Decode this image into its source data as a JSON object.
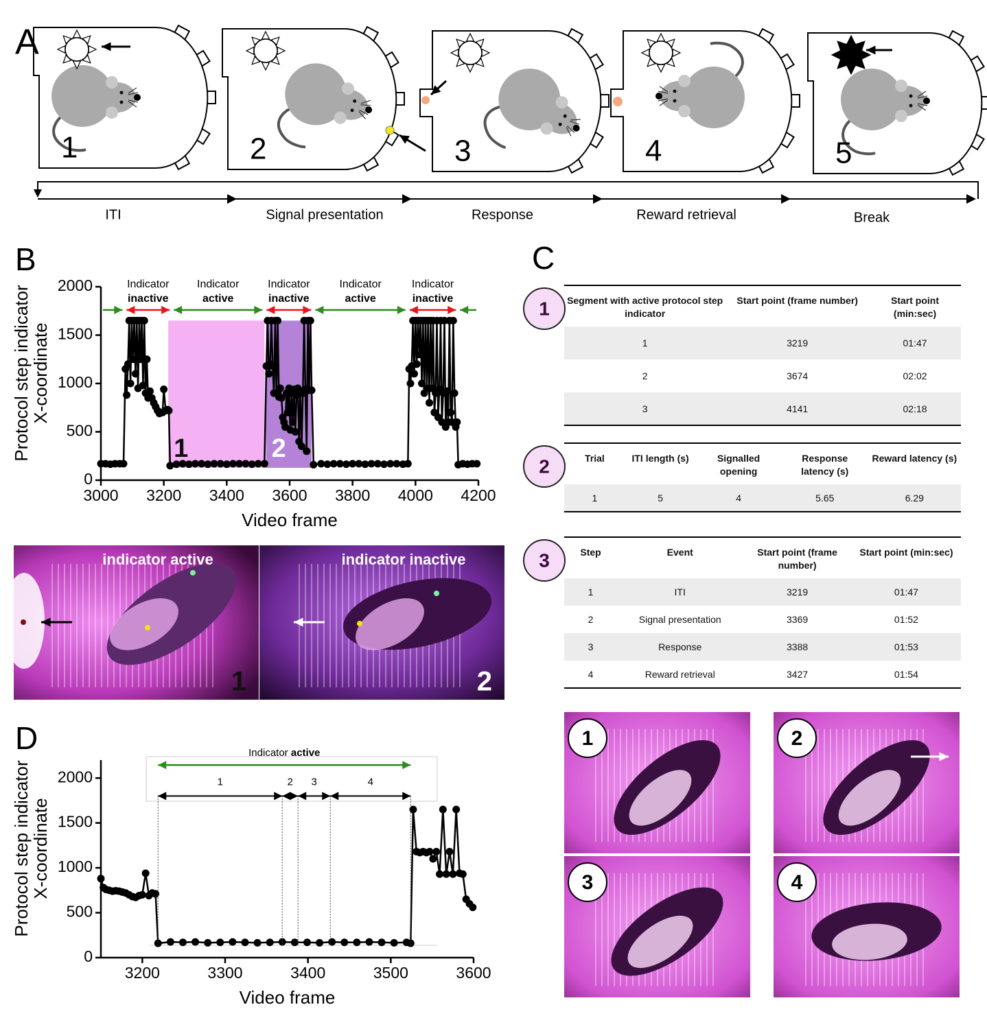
{
  "panel_labels": [
    "A",
    "B",
    "C",
    "D"
  ],
  "panel_a": {
    "steps": [
      "1",
      "2",
      "3",
      "4",
      "5"
    ],
    "phases": [
      "ITI",
      "Signal presentation",
      "Response",
      "Reward retrieval",
      "Break"
    ]
  },
  "chart_data": [
    {
      "type": "line",
      "xlabel": "Video frame",
      "ylabel": [
        "Protocol step indicator",
        "X-coordinate"
      ],
      "xlim": [
        3000,
        4200
      ],
      "xticks": [
        3000,
        3200,
        3400,
        3600,
        3800,
        4000,
        4200
      ],
      "ylim": [
        0,
        2000
      ],
      "yticks": [
        0,
        500,
        1000,
        1500,
        2000
      ],
      "color": "#000000",
      "x": [
        3000,
        3015,
        3030,
        3045,
        3060,
        3072,
        3078,
        3082,
        3086,
        3090,
        3094,
        3098,
        3102,
        3106,
        3110,
        3114,
        3118,
        3122,
        3126,
        3130,
        3134,
        3138,
        3142,
        3146,
        3150,
        3156,
        3162,
        3168,
        3174,
        3180,
        3186,
        3192,
        3196,
        3200,
        3206,
        3212,
        3216,
        3220,
        3240,
        3260,
        3280,
        3300,
        3320,
        3340,
        3360,
        3380,
        3400,
        3420,
        3440,
        3460,
        3480,
        3500,
        3520,
        3526,
        3530,
        3534,
        3538,
        3542,
        3546,
        3550,
        3554,
        3558,
        3562,
        3566,
        3570,
        3574,
        3578,
        3582,
        3586,
        3590,
        3594,
        3598,
        3602,
        3606,
        3610,
        3614,
        3618,
        3622,
        3626,
        3630,
        3634,
        3638,
        3642,
        3646,
        3650,
        3654,
        3658,
        3662,
        3666,
        3670,
        3676,
        3700,
        3720,
        3740,
        3760,
        3780,
        3800,
        3820,
        3840,
        3860,
        3880,
        3900,
        3920,
        3940,
        3960,
        3976,
        3980,
        3984,
        3988,
        3992,
        3996,
        4000,
        4004,
        4008,
        4012,
        4016,
        4020,
        4024,
        4028,
        4032,
        4036,
        4040,
        4044,
        4048,
        4052,
        4056,
        4060,
        4064,
        4068,
        4072,
        4076,
        4080,
        4084,
        4088,
        4092,
        4096,
        4100,
        4104,
        4108,
        4112,
        4116,
        4120,
        4124,
        4128,
        4132,
        4136,
        4150,
        4165,
        4180,
        4195
      ],
      "values": [
        170,
        170,
        165,
        170,
        170,
        170,
        1150,
        880,
        1200,
        1650,
        1000,
        1650,
        1250,
        1650,
        1100,
        1650,
        950,
        1650,
        1250,
        1650,
        980,
        1650,
        900,
        1250,
        850,
        920,
        850,
        800,
        760,
        720,
        690,
        700,
        700,
        940,
        720,
        730,
        720,
        150,
        165,
        170,
        165,
        170,
        170,
        165,
        170,
        170,
        165,
        170,
        170,
        170,
        165,
        170,
        170,
        1180,
        1650,
        1100,
        1200,
        1650,
        1180,
        900,
        1650,
        900,
        1650,
        860,
        950,
        850,
        650,
        600,
        550,
        900,
        700,
        950,
        520,
        900,
        600,
        940,
        500,
        880,
        950,
        400,
        920,
        350,
        900,
        1650,
        940,
        300,
        1650,
        930,
        1650,
        930,
        160,
        170,
        165,
        170,
        170,
        165,
        170,
        170,
        165,
        170,
        170,
        165,
        170,
        170,
        165,
        170,
        1150,
        1000,
        1180,
        1650,
        1100,
        1650,
        1200,
        1650,
        1300,
        1650,
        1000,
        1650,
        900,
        1650,
        950,
        1650,
        800,
        1650,
        950,
        1650,
        700,
        900,
        1650,
        650,
        940,
        1650,
        600,
        900,
        1650,
        550,
        920,
        600,
        1650,
        700,
        600,
        1650,
        900,
        550,
        600,
        160,
        170,
        165,
        170,
        170
      ],
      "regions": [
        {
          "x0": 3214,
          "x1": 3520,
          "y1": 1650,
          "color": "#f4b1f4",
          "label": "1",
          "label_color": "#111111"
        },
        {
          "x0": 3525,
          "x1": 3670,
          "y1": 1650,
          "color": "#b483d8",
          "label": "2",
          "label_color": "#ffffff"
        }
      ],
      "arrow_y": 1760,
      "spans": [
        {
          "x0": 3000,
          "x1": 3075,
          "color": "#2e8b1e"
        },
        {
          "x0": 3075,
          "x1": 3225,
          "color": "#e8161b",
          "text": "Indicator",
          "bold": "inactive"
        },
        {
          "x0": 3225,
          "x1": 3520,
          "color": "#2e8b1e",
          "text": "Indicator",
          "bold": "active"
        },
        {
          "x0": 3520,
          "x1": 3675,
          "color": "#e8161b",
          "text": "Indicator",
          "bold": "inactive"
        },
        {
          "x0": 3675,
          "x1": 3975,
          "color": "#2e8b1e",
          "text": "Indicator",
          "bold": "active"
        },
        {
          "x0": 3975,
          "x1": 4135,
          "color": "#e8161b",
          "text": "Indicator",
          "bold": "inactive"
        },
        {
          "x0": 4135,
          "x1": 4200,
          "color": "#2e8b1e"
        }
      ]
    },
    {
      "type": "line",
      "xlabel": "Video frame",
      "ylabel": [
        "Protocol step indicator",
        "X-coordinate"
      ],
      "xlim": [
        3150,
        3600
      ],
      "xticks": [
        3200,
        3300,
        3400,
        3500,
        3600
      ],
      "ylim": [
        0,
        2200
      ],
      "yticks": [
        0,
        500,
        1000,
        1500,
        2000
      ],
      "color": "#000000",
      "x": [
        3150,
        3153,
        3156,
        3160,
        3164,
        3168,
        3172,
        3176,
        3180,
        3184,
        3188,
        3192,
        3196,
        3200,
        3204,
        3208,
        3212,
        3216,
        3219,
        3234,
        3249,
        3264,
        3279,
        3294,
        3309,
        3324,
        3339,
        3354,
        3369,
        3384,
        3399,
        3414,
        3429,
        3444,
        3459,
        3474,
        3489,
        3504,
        3519,
        3524,
        3527,
        3531,
        3535,
        3539,
        3543,
        3547,
        3551,
        3555,
        3559,
        3563,
        3567,
        3571,
        3575,
        3579,
        3583,
        3587,
        3591,
        3595,
        3599
      ],
      "values": [
        880,
        780,
        760,
        750,
        740,
        745,
        740,
        730,
        720,
        700,
        680,
        670,
        690,
        700,
        940,
        690,
        720,
        710,
        160,
        175,
        170,
        175,
        165,
        170,
        175,
        170,
        165,
        170,
        175,
        170,
        170,
        165,
        175,
        170,
        170,
        175,
        170,
        165,
        170,
        160,
        1650,
        1180,
        1170,
        1180,
        1170,
        1180,
        1100,
        1180,
        930,
        1650,
        930,
        1180,
        930,
        1650,
        940,
        930,
        650,
        600,
        560
      ],
      "bracket": {
        "text": "Indicator",
        "bold": "active",
        "x0": 3219,
        "x1": 3524,
        "y": 2145,
        "color": "#2e8b1e"
      },
      "segment_y": 1800,
      "segments": [
        {
          "label": "1",
          "x0": 3219,
          "x1": 3369
        },
        {
          "label": "2",
          "x0": 3369,
          "x1": 3388
        },
        {
          "label": "3",
          "x0": 3388,
          "x1": 3427
        },
        {
          "label": "4",
          "x0": 3427,
          "x1": 3524
        }
      ]
    }
  ],
  "panel_b_photos": [
    {
      "text": "indicator active",
      "number": "1"
    },
    {
      "text": "indicator inactive",
      "number": "2"
    }
  ],
  "panel_c": {
    "tables": [
      {
        "label": "1",
        "header": [
          "Segment with active protocol step indicator",
          "Start point (frame number)",
          "Start point (min:sec)"
        ],
        "rows": [
          [
            "1",
            "3219",
            "01:47"
          ],
          [
            "2",
            "3674",
            "02:02"
          ],
          [
            "3",
            "4141",
            "02:18"
          ]
        ]
      },
      {
        "label": "2",
        "header": [
          "Trial",
          "ITI length (s)",
          "Signalled opening",
          "Response latency (s)",
          "Reward latency (s)"
        ],
        "rows": [
          [
            "1",
            "5",
            "4",
            "5.65",
            "6.29"
          ]
        ]
      },
      {
        "label": "3",
        "header": [
          "Step",
          "Event",
          "Start point (frame number)",
          "Start point (min:sec)"
        ],
        "rows": [
          [
            "1",
            "ITI",
            "3219",
            "01:47"
          ],
          [
            "2",
            "Signal presentation",
            "3369",
            "01:52"
          ],
          [
            "3",
            "Response",
            "3388",
            "01:53"
          ],
          [
            "4",
            "Reward retrieval",
            "3427",
            "01:54"
          ]
        ]
      }
    ],
    "photos": [
      "1",
      "2",
      "3",
      "4"
    ]
  }
}
